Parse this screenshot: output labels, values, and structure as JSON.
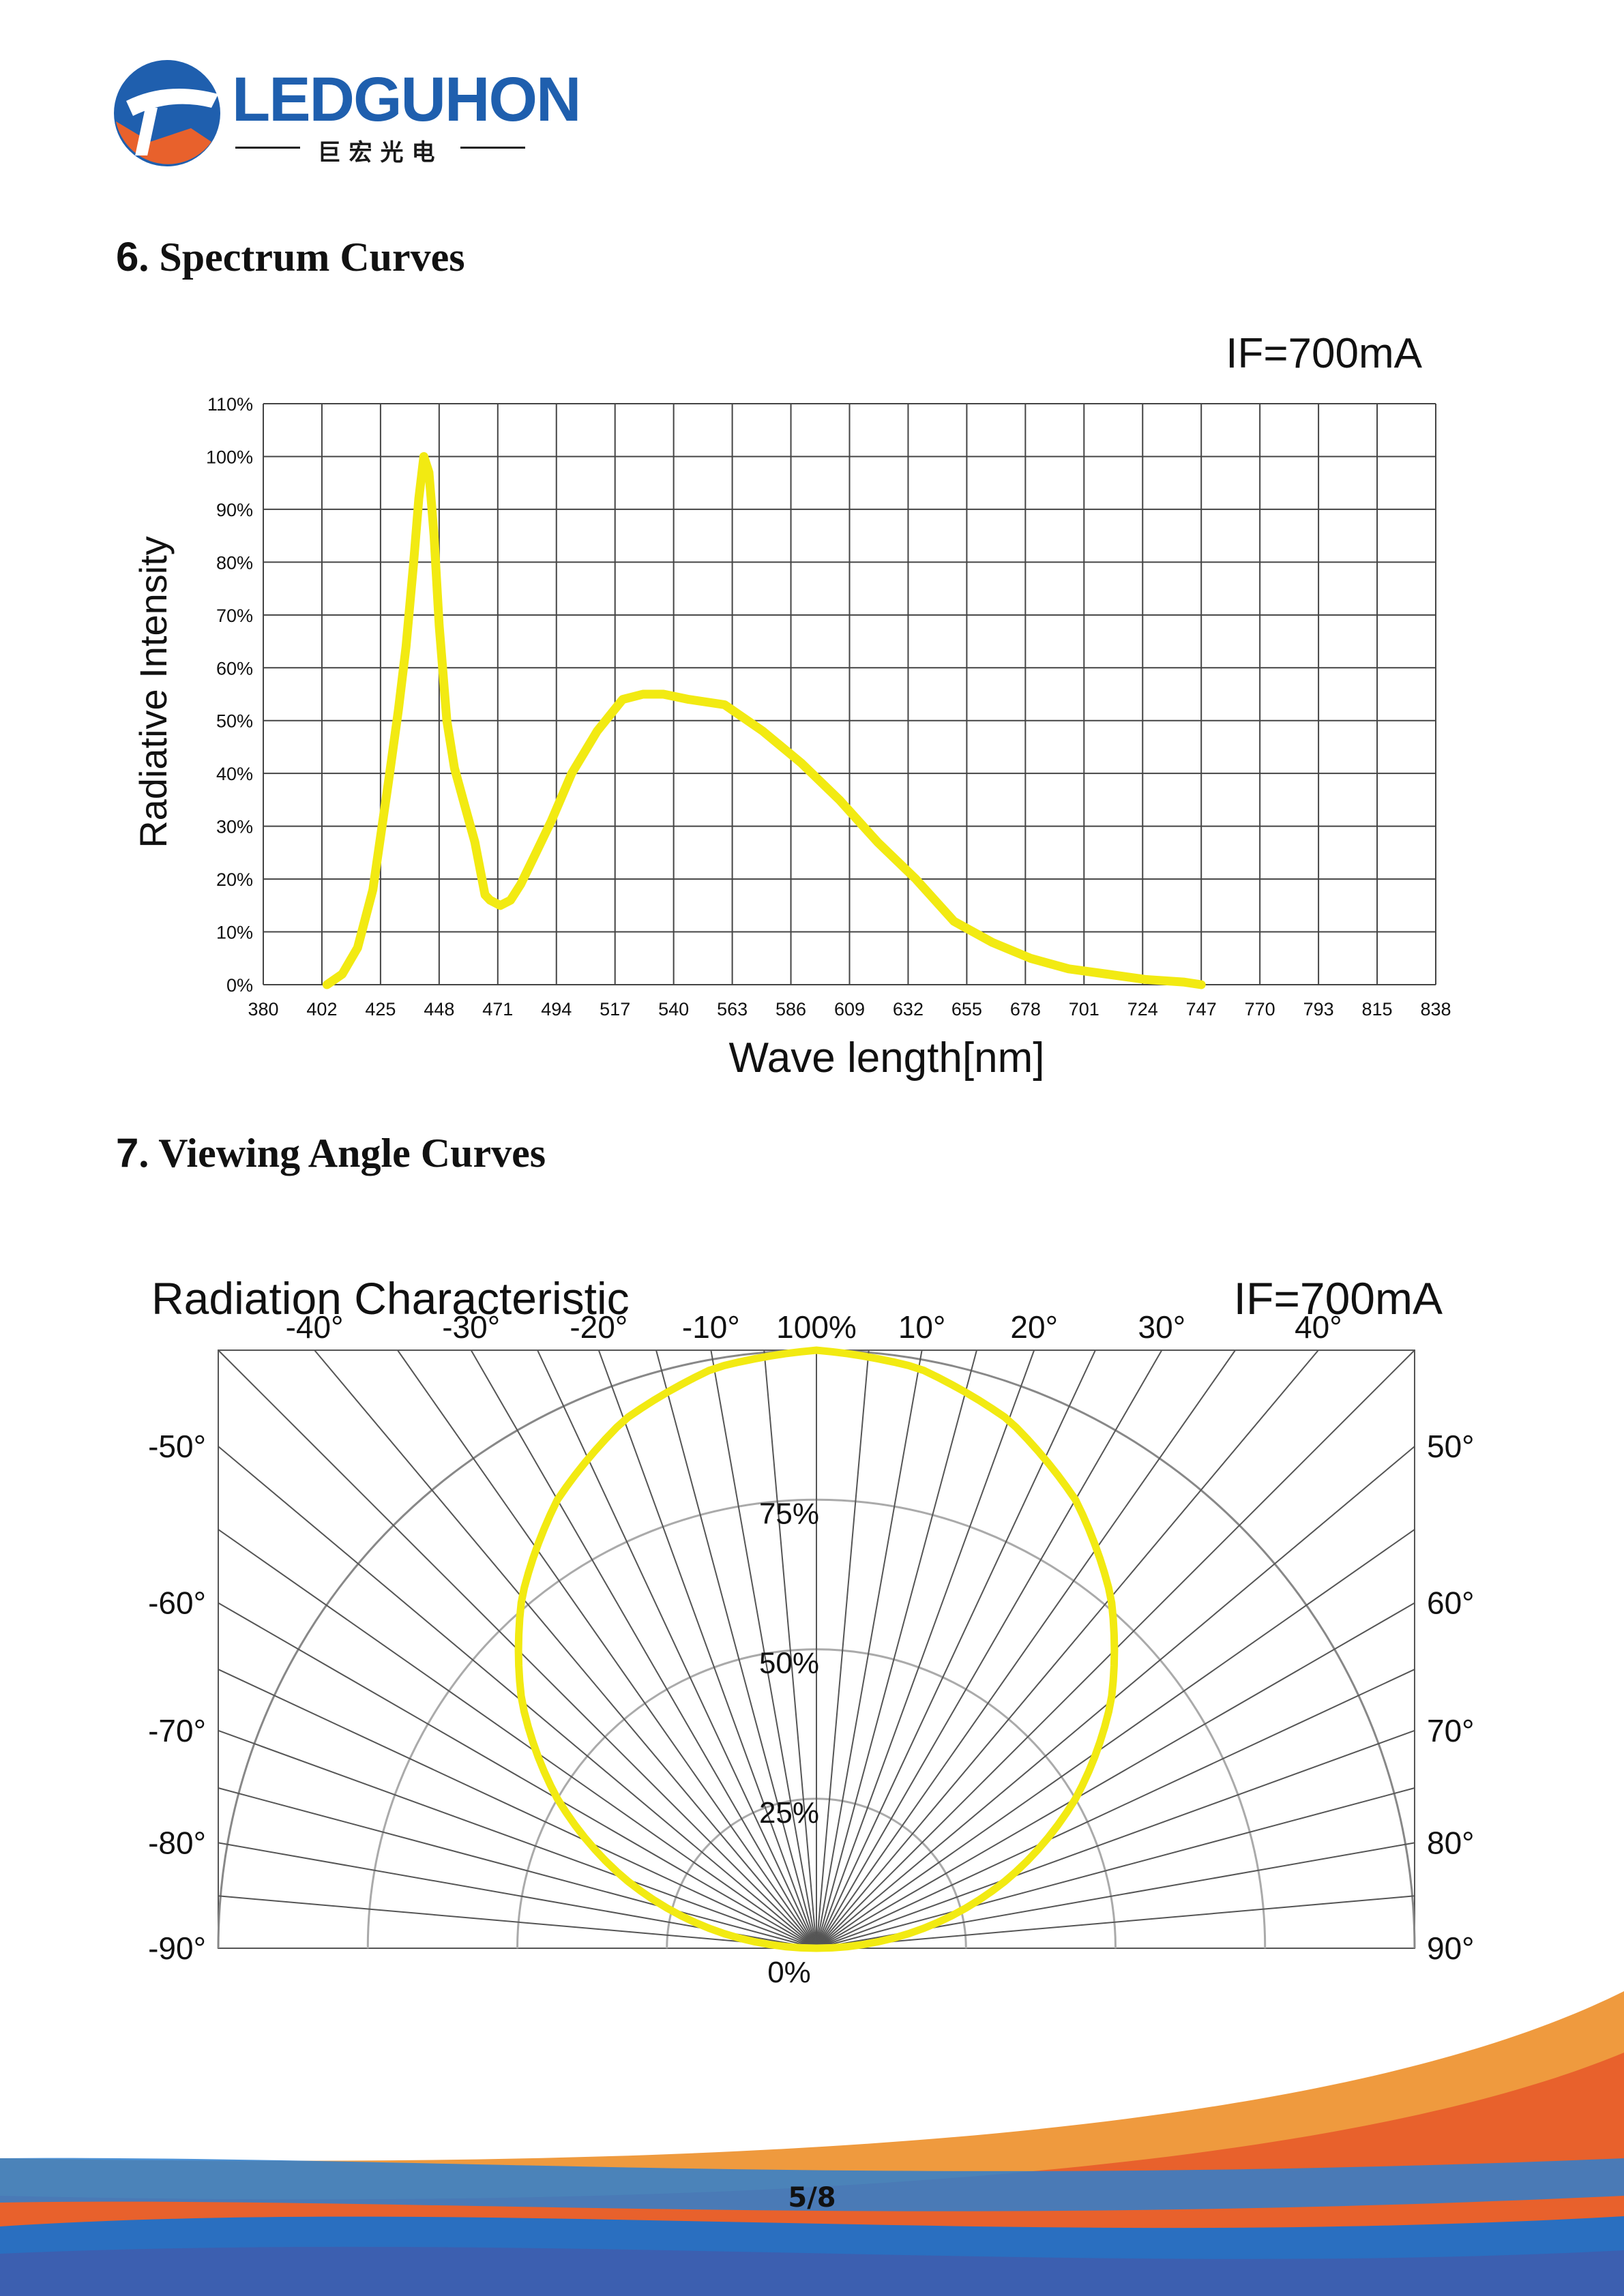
{
  "logo": {
    "name": "LEDGUHON",
    "subtitle_cn": "巨宏光电"
  },
  "sections": {
    "spectrum_title_num": "6",
    "spectrum_title_text": ". Spectrum Curves",
    "viewing_title_num": "7",
    "viewing_title_text": ". Viewing Angle Curves"
  },
  "colors": {
    "curve": "#f2ea12",
    "grid": "#444444",
    "brand_blue": "#1f5fae",
    "brand_orange": "#e8612c"
  },
  "chart_data": [
    {
      "type": "line",
      "condition": "IF=700mA",
      "xlabel": "Wave length[nm]",
      "ylabel": "Radiative Intensity",
      "x_ticks": [
        380,
        402,
        425,
        448,
        471,
        494,
        517,
        540,
        563,
        586,
        609,
        632,
        655,
        678,
        701,
        724,
        747,
        770,
        793,
        815,
        838
      ],
      "y_ticks": [
        "0%",
        "10%",
        "20%",
        "30%",
        "40%",
        "50%",
        "60%",
        "70%",
        "80%",
        "90%",
        "100%",
        "110%"
      ],
      "ylim": [
        0,
        110
      ],
      "series": [
        {
          "name": "Spectrum",
          "x": [
            404,
            410,
            416,
            422,
            428,
            432,
            435,
            438,
            440,
            442,
            444,
            446,
            448,
            451,
            454,
            458,
            462,
            466,
            468,
            472,
            476,
            480,
            486,
            492,
            500,
            510,
            520,
            528,
            536,
            546,
            560,
            575,
            590,
            605,
            620,
            635,
            650,
            665,
            680,
            695,
            710,
            725,
            740,
            747
          ],
          "y": [
            0,
            2,
            7,
            18,
            38,
            52,
            64,
            80,
            92,
            100,
            97,
            85,
            68,
            50,
            41,
            34,
            27,
            17,
            16,
            15,
            16,
            19,
            25,
            31,
            40,
            48,
            54,
            55,
            55,
            54,
            53,
            48,
            42,
            35,
            27,
            20,
            12,
            8,
            5,
            3,
            2,
            1,
            0.5,
            0
          ]
        }
      ]
    },
    {
      "type": "polar",
      "title": "Radiation Characteristic",
      "condition": "IF=700mA",
      "angle_labels_top": [
        "-40°",
        "-30°",
        "-20°",
        "-10°",
        "100%",
        "10°",
        "20°",
        "30°",
        "40°"
      ],
      "angle_labels_left": [
        "-50°",
        "-60°",
        "-70°",
        "-80°",
        "-90°"
      ],
      "angle_labels_right": [
        "50°",
        "60°",
        "70°",
        "80°",
        "90°"
      ],
      "radial_labels": [
        "75%",
        "50%",
        "25%",
        "0%"
      ],
      "series": [
        {
          "name": "Radiation pattern",
          "angles_deg": [
            -90,
            -80,
            -70,
            -60,
            -50,
            -40,
            -30,
            -20,
            -10,
            0,
            10,
            20,
            30,
            40,
            50,
            60,
            70,
            80,
            90
          ],
          "values": [
            0,
            17.4,
            34.2,
            50,
            64.3,
            76.6,
            86.6,
            94,
            98.5,
            100,
            98.5,
            94,
            86.6,
            76.6,
            64.3,
            50,
            34.2,
            17.4,
            0
          ]
        }
      ]
    }
  ],
  "page_number": "5/8"
}
